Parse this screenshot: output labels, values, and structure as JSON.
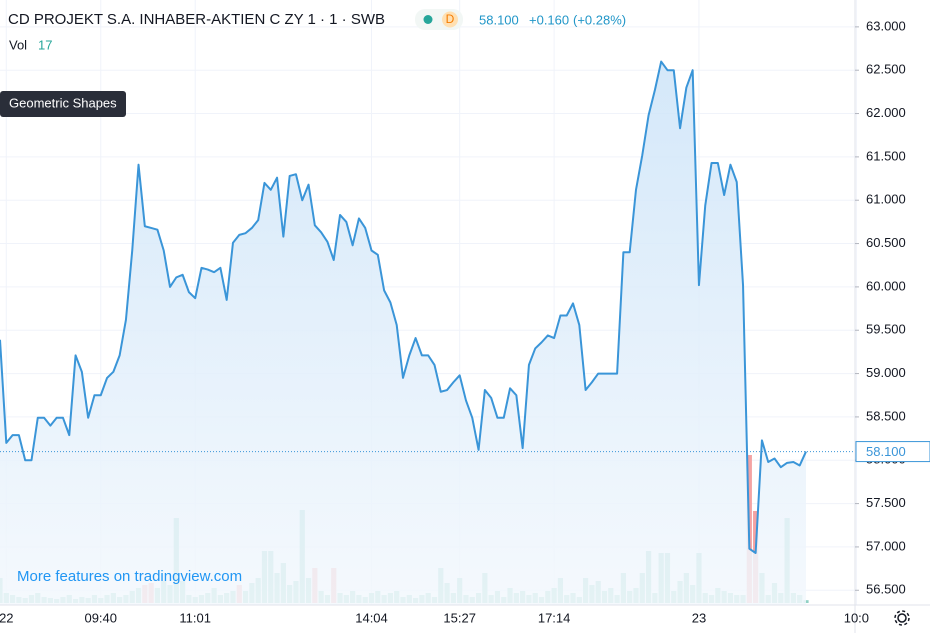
{
  "chart_data": {
    "type": "area",
    "title": "CD PROJEKT S.A. INHABER-AKTIEN C ZY 1 · 1 · SWB",
    "interval": "D",
    "last_price": {
      "value": 58.1,
      "label": "58.100"
    },
    "change": {
      "value": 0.16,
      "label": "+0.160"
    },
    "change_pct": {
      "value": 0.28,
      "label": "(+0.28%)"
    },
    "volume_label": "Vol",
    "volume_last": 17,
    "tooltip": "Geometric Shapes",
    "promo": "More features on tradingview.com",
    "categories": [
      null,
      "22",
      null,
      null,
      null,
      null,
      null,
      null,
      null,
      null,
      null,
      null,
      null,
      null,
      null,
      null,
      "09:40",
      null,
      null,
      null,
      null,
      null,
      null,
      null,
      null,
      null,
      null,
      null,
      null,
      null,
      null,
      "11:01",
      null,
      null,
      null,
      null,
      null,
      null,
      null,
      null,
      null,
      null,
      null,
      null,
      null,
      null,
      null,
      null,
      null,
      null,
      null,
      null,
      null,
      null,
      null,
      null,
      null,
      null,
      null,
      "14:04",
      null,
      null,
      null,
      null,
      null,
      null,
      null,
      null,
      null,
      null,
      null,
      null,
      null,
      "15:27",
      null,
      null,
      null,
      null,
      null,
      null,
      null,
      null,
      null,
      null,
      null,
      null,
      null,
      null,
      "17:14",
      null,
      null,
      null,
      null,
      null,
      null,
      null,
      null,
      null,
      null,
      null,
      null,
      null,
      null,
      null,
      null,
      null,
      null,
      null,
      null,
      null,
      null,
      "23",
      null,
      null,
      null,
      null,
      null,
      null,
      null,
      null,
      null,
      null,
      null,
      null,
      null,
      null,
      null,
      null,
      null,
      null,
      null,
      null,
      null,
      null,
      null,
      null,
      "10:0"
    ],
    "series": [
      {
        "color": "#3a95d8",
        "values": [
          59.39,
          58.2,
          58.29,
          58.29,
          58,
          58,
          58.49,
          58.49,
          58.4,
          58.49,
          58.49,
          58.29,
          59.21,
          59.02,
          58.49,
          58.75,
          58.75,
          58.95,
          59.02,
          59.21,
          59.62,
          60.42,
          61.41,
          60.7,
          60.68,
          60.66,
          60.42,
          60,
          60.11,
          60.14,
          59.94,
          59.87,
          60.22,
          60.2,
          60.17,
          60.22,
          59.85,
          60.51,
          60.6,
          60.62,
          60.68,
          60.77,
          61.2,
          61.12,
          61.26,
          60.58,
          61.28,
          61.3,
          61,
          61.18,
          60.71,
          60.63,
          60.52,
          60.31,
          60.83,
          60.75,
          60.48,
          60.79,
          60.68,
          60.42,
          60.37,
          59.96,
          59.82,
          59.56,
          58.95,
          59.21,
          59.41,
          59.21,
          59.21,
          59.1,
          58.79,
          58.81,
          58.9,
          58.98,
          58.69,
          58.49,
          58.12,
          58.81,
          58.72,
          58.49,
          58.49,
          58.83,
          58.75,
          58.14,
          59.1,
          59.29,
          59.36,
          59.44,
          59.41,
          59.67,
          59.67,
          59.81,
          59.56,
          58.81,
          58.9,
          59,
          59,
          59,
          59,
          60.4,
          60.4,
          61.12,
          61.52,
          61.98,
          62.27,
          62.6,
          62.5,
          62.5,
          61.83,
          62.3,
          62.5,
          60.02,
          60.94,
          61.43,
          61.43,
          61.06,
          61.41,
          61.21,
          60.02,
          56.98,
          56.93,
          58.23,
          57.98,
          58.02,
          57.92,
          57.97,
          57.98,
          57.94,
          58.1,
          null,
          null,
          null,
          null,
          null,
          null,
          null,
          null
        ]
      }
    ],
    "volume": {
      "values": [
        150,
        60,
        48,
        36,
        30,
        48,
        60,
        36,
        30,
        24,
        36,
        48,
        24,
        36,
        30,
        48,
        30,
        48,
        60,
        36,
        48,
        72,
        90,
        108,
        120,
        90,
        132,
        108,
        510,
        132,
        48,
        36,
        48,
        60,
        90,
        48,
        60,
        72,
        108,
        72,
        120,
        150,
        312,
        312,
        180,
        240,
        108,
        132,
        558,
        150,
        210,
        72,
        48,
        210,
        60,
        48,
        72,
        48,
        36,
        60,
        72,
        48,
        60,
        72,
        36,
        48,
        30,
        48,
        60,
        36,
        210,
        120,
        60,
        150,
        48,
        36,
        60,
        180,
        48,
        72,
        36,
        90,
        60,
        72,
        48,
        60,
        36,
        72,
        90,
        150,
        48,
        60,
        36,
        150,
        108,
        132,
        72,
        90,
        48,
        180,
        72,
        90,
        180,
        312,
        60,
        300,
        300,
        72,
        132,
        180,
        108,
        300,
        60,
        48,
        90,
        72,
        60,
        48,
        48,
        888,
        552,
        180,
        48,
        120,
        60,
        510,
        60,
        48,
        17,
        null,
        null,
        null,
        null,
        null,
        null,
        null,
        null
      ],
      "up_color": "#8fd0c4",
      "down_color": "#f4a3a3",
      "down": [
        23,
        24,
        38,
        50,
        53,
        119,
        120
      ]
    },
    "ylim": [
      56.33,
      63.31
    ],
    "yticks": [
      {
        "value": 56.5,
        "label": "56.500"
      },
      {
        "value": 57,
        "label": "57.000"
      },
      {
        "value": 57.5,
        "label": "57.500"
      },
      {
        "value": 58,
        "label": "58.000"
      },
      {
        "value": 58.5,
        "label": "58.500"
      },
      {
        "value": 59,
        "label": "59.000"
      },
      {
        "value": 59.5,
        "label": "59.500"
      },
      {
        "value": 60,
        "label": "60.000"
      },
      {
        "value": 60.5,
        "label": "60.500"
      },
      {
        "value": 61,
        "label": "61.000"
      },
      {
        "value": 61.5,
        "label": "61.500"
      },
      {
        "value": 62,
        "label": "62.000"
      },
      {
        "value": 62.5,
        "label": "62.500"
      },
      {
        "value": 63,
        "label": "63.000"
      }
    ],
    "grid": true
  }
}
